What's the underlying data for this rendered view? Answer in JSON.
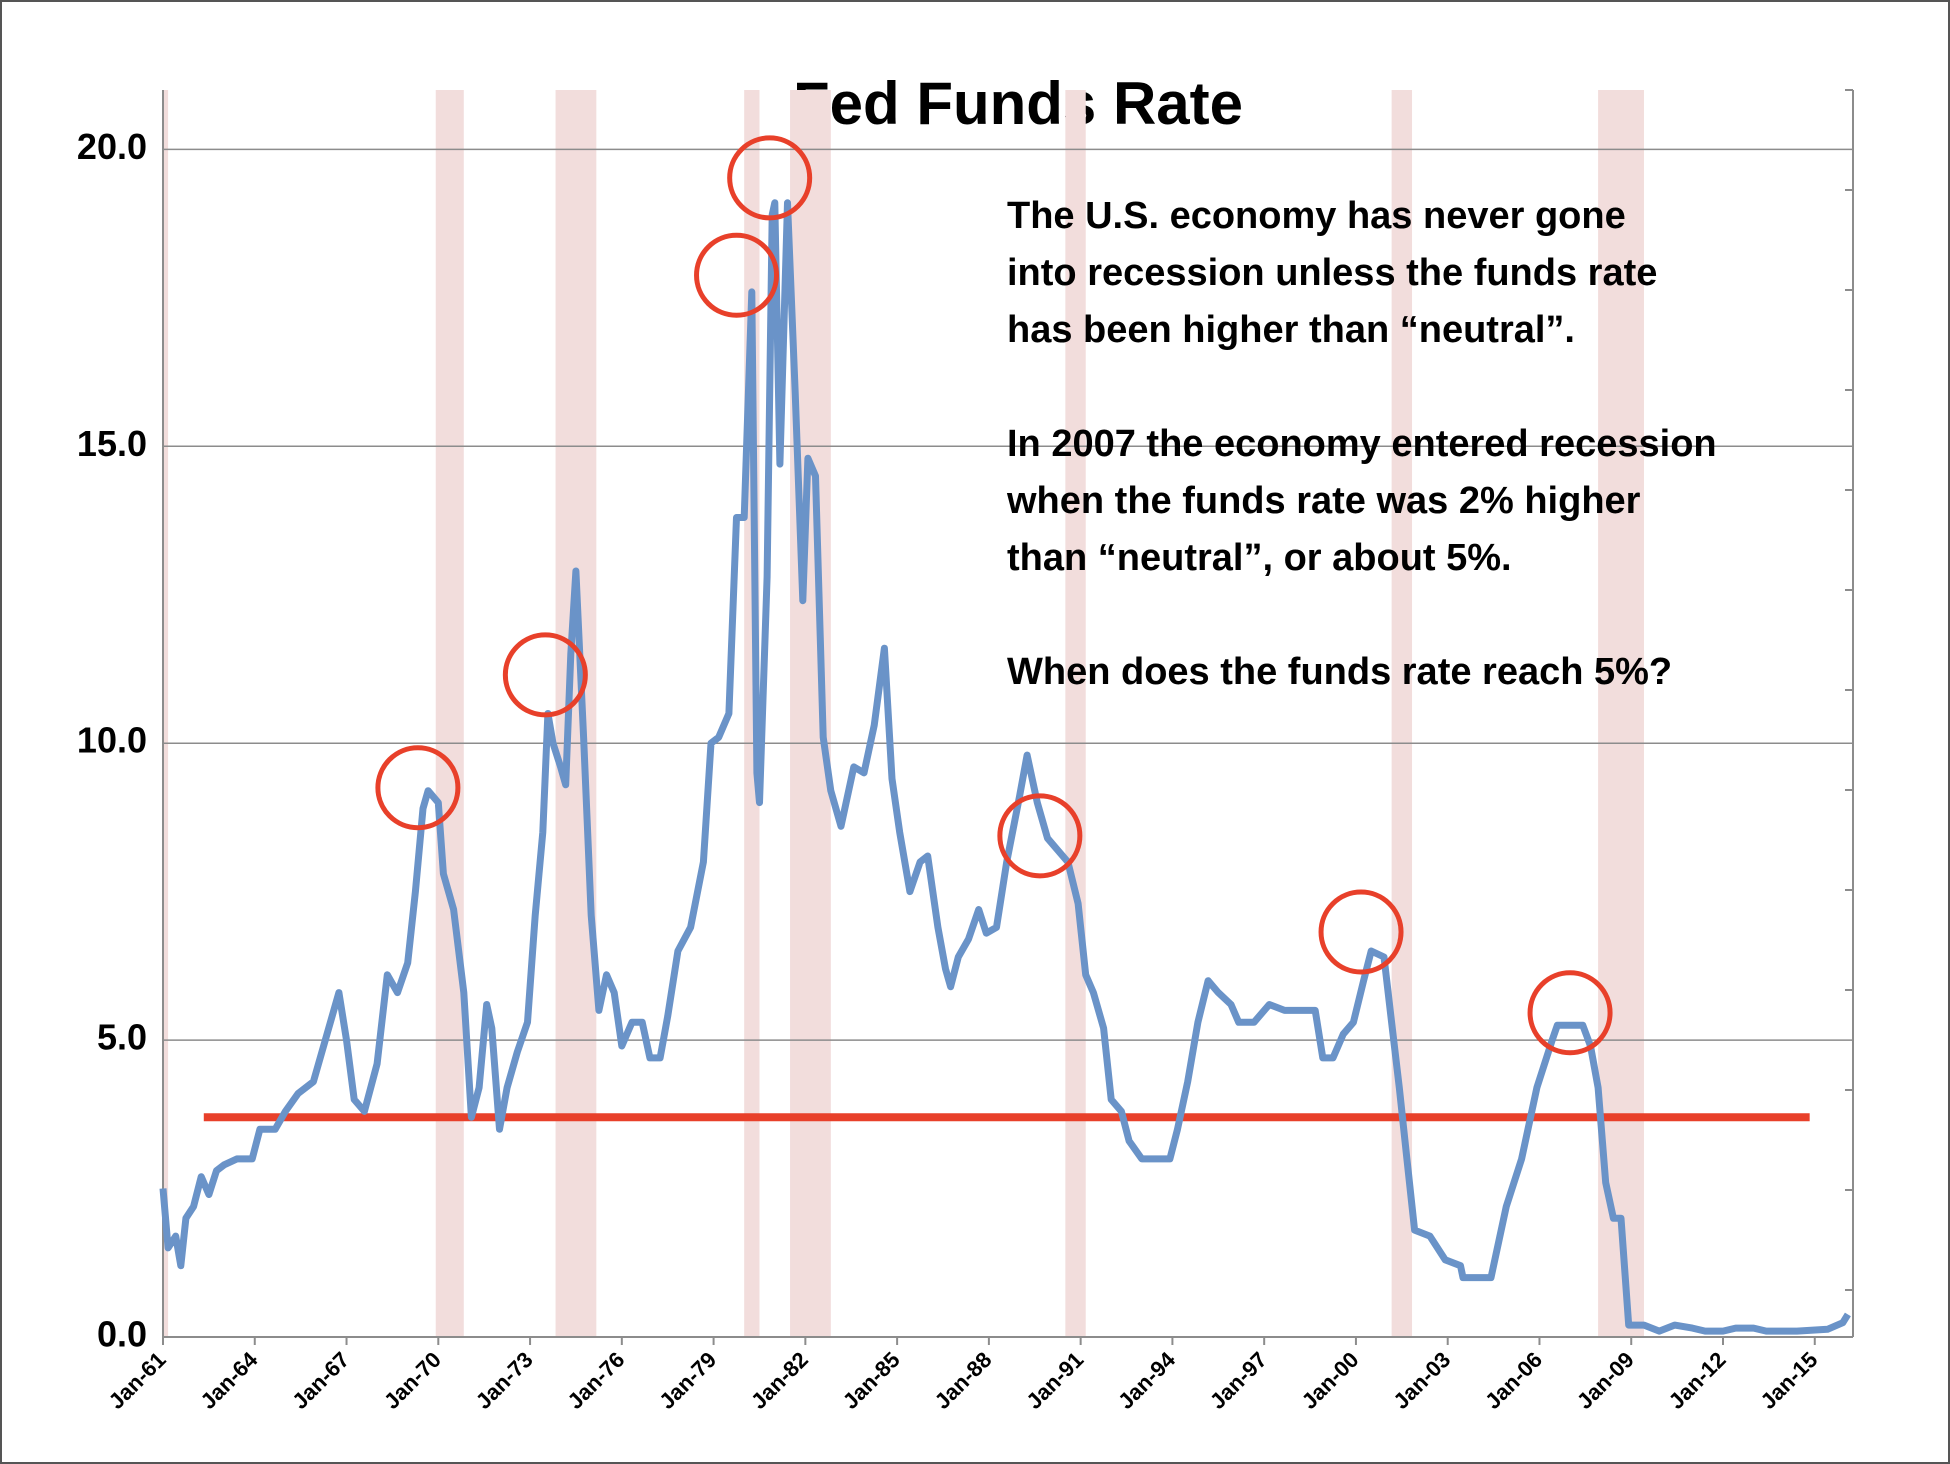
{
  "chart_data": {
    "type": "line",
    "title": "Fed Funds Rate",
    "x": [
      "1961-01",
      "1961-03",
      "1961-06",
      "1961-08",
      "1961-10",
      "1962-01",
      "1962-04",
      "1962-07",
      "1962-10",
      "1963-01",
      "1963-06",
      "1963-12",
      "1964-03",
      "1964-09",
      "1965-01",
      "1965-06",
      "1965-12",
      "1966-06",
      "1966-10",
      "1967-01",
      "1967-04",
      "1967-08",
      "1968-01",
      "1968-05",
      "1968-09",
      "1969-01",
      "1969-04",
      "1969-07",
      "1969-09",
      "1970-01",
      "1970-03",
      "1970-07",
      "1970-11",
      "1971-02",
      "1971-05",
      "1971-08",
      "1971-10",
      "1972-01",
      "1972-04",
      "1972-08",
      "1972-12",
      "1973-03",
      "1973-06",
      "1973-08",
      "1973-10",
      "1974-01",
      "1974-03",
      "1974-05",
      "1974-07",
      "1974-10",
      "1975-01",
      "1975-04",
      "1975-07",
      "1975-10",
      "1976-01",
      "1976-05",
      "1976-09",
      "1976-12",
      "1977-04",
      "1977-07",
      "1977-11",
      "1978-04",
      "1978-09",
      "1978-12",
      "1979-03",
      "1979-07",
      "1979-10",
      "1980-01",
      "1980-04",
      "1980-06",
      "1980-07",
      "1980-10",
      "1980-12",
      "1981-01",
      "1981-03",
      "1981-06",
      "1981-09",
      "1981-12",
      "1982-02",
      "1982-05",
      "1982-08",
      "1982-11",
      "1983-03",
      "1983-08",
      "1983-12",
      "1984-04",
      "1984-08",
      "1984-11",
      "1985-02",
      "1985-06",
      "1985-10",
      "1986-01",
      "1986-05",
      "1986-08",
      "1986-10",
      "1987-01",
      "1987-05",
      "1987-09",
      "1987-12",
      "1988-04",
      "1988-08",
      "1989-01",
      "1989-04",
      "1989-08",
      "1989-12",
      "1990-04",
      "1990-08",
      "1990-12",
      "1991-03",
      "1991-06",
      "1991-10",
      "1992-01",
      "1992-05",
      "1992-08",
      "1993-01",
      "1993-06",
      "1993-12",
      "1994-03",
      "1994-07",
      "1994-11",
      "1995-03",
      "1995-07",
      "1995-12",
      "1996-03",
      "1996-09",
      "1997-03",
      "1997-09",
      "1998-03",
      "1998-09",
      "1998-12",
      "1999-04",
      "1999-08",
      "1999-12",
      "2000-04",
      "2000-07",
      "2000-12",
      "2001-03",
      "2001-06",
      "2001-09",
      "2001-12",
      "2002-06",
      "2002-12",
      "2003-06",
      "2003-07",
      "2004-06",
      "2004-12",
      "2005-06",
      "2005-12",
      "2006-06",
      "2006-08",
      "2007-06",
      "2007-09",
      "2007-12",
      "2008-03",
      "2008-06",
      "2008-09",
      "2008-12",
      "2009-06",
      "2009-12",
      "2010-06",
      "2011-01",
      "2011-06",
      "2012-01",
      "2012-06",
      "2013-01",
      "2013-06",
      "2014-06",
      "2015-06",
      "2015-12",
      "2016-02"
    ],
    "series": [
      {
        "color": "#6a93c8",
        "values": [
          2.5,
          1.5,
          1.7,
          1.2,
          2.0,
          2.2,
          2.7,
          2.4,
          2.8,
          2.9,
          3.0,
          3.0,
          3.5,
          3.5,
          3.8,
          4.1,
          4.3,
          5.2,
          5.8,
          5.0,
          4.0,
          3.8,
          4.6,
          6.1,
          5.8,
          6.3,
          7.5,
          8.9,
          9.2,
          9.0,
          7.8,
          7.2,
          5.8,
          3.7,
          4.2,
          5.6,
          5.2,
          3.5,
          4.2,
          4.8,
          5.3,
          7.1,
          8.5,
          10.5,
          10.0,
          9.6,
          9.3,
          11.5,
          12.9,
          10.1,
          7.1,
          5.5,
          6.1,
          5.8,
          4.9,
          5.3,
          5.3,
          4.7,
          4.7,
          5.4,
          6.5,
          6.9,
          8.0,
          10.0,
          10.1,
          10.5,
          13.8,
          13.8,
          17.6,
          9.5,
          9.0,
          12.8,
          18.9,
          19.1,
          14.7,
          19.1,
          15.9,
          12.4,
          14.8,
          14.5,
          10.1,
          9.2,
          8.6,
          9.6,
          9.5,
          10.3,
          11.6,
          9.4,
          8.5,
          7.5,
          8.0,
          8.1,
          6.9,
          6.2,
          5.9,
          6.4,
          6.7,
          7.2,
          6.8,
          6.9,
          8.0,
          9.1,
          9.8,
          9.0,
          8.4,
          8.2,
          8.0,
          7.3,
          6.1,
          5.8,
          5.2,
          4.0,
          3.8,
          3.3,
          3.0,
          3.0,
          3.0,
          3.5,
          4.3,
          5.3,
          6.0,
          5.8,
          5.6,
          5.3,
          5.3,
          5.6,
          5.5,
          5.5,
          5.5,
          4.7,
          4.7,
          5.1,
          5.3,
          6.0,
          6.5,
          6.4,
          5.3,
          4.2,
          3.0,
          1.8,
          1.7,
          1.3,
          1.2,
          1.0,
          1.0,
          2.2,
          3.0,
          4.2,
          5.0,
          5.25,
          5.25,
          4.9,
          4.2,
          2.6,
          2.0,
          2.0,
          0.2,
          0.2,
          0.1,
          0.2,
          0.15,
          0.1,
          0.1,
          0.15,
          0.15,
          0.1,
          0.1,
          0.13,
          0.24,
          0.38
        ]
      }
    ],
    "xlim": [
      "1961-01",
      "2016-04"
    ],
    "xticks": [
      {
        "value": "1961-01",
        "label": "Jan-61"
      },
      {
        "value": "1964-01",
        "label": "Jan-64"
      },
      {
        "value": "1967-01",
        "label": "Jan-67"
      },
      {
        "value": "1970-01",
        "label": "Jan-70"
      },
      {
        "value": "1973-01",
        "label": "Jan-73"
      },
      {
        "value": "1976-01",
        "label": "Jan-76"
      },
      {
        "value": "1979-01",
        "label": "Jan-79"
      },
      {
        "value": "1982-01",
        "label": "Jan-82"
      },
      {
        "value": "1985-01",
        "label": "Jan-85"
      },
      {
        "value": "1988-01",
        "label": "Jan-88"
      },
      {
        "value": "1991-01",
        "label": "Jan-91"
      },
      {
        "value": "1994-01",
        "label": "Jan-94"
      },
      {
        "value": "1997-01",
        "label": "Jan-97"
      },
      {
        "value": "2000-01",
        "label": "Jan-00"
      },
      {
        "value": "2003-01",
        "label": "Jan-03"
      },
      {
        "value": "2006-01",
        "label": "Jan-06"
      },
      {
        "value": "2009-01",
        "label": "Jan-09"
      },
      {
        "value": "2012-01",
        "label": "Jan-12"
      },
      {
        "value": "2015-01",
        "label": "Jan-15"
      }
    ],
    "ylim": [
      0,
      21
    ],
    "yticks": [
      {
        "value": 0,
        "label": "0.0"
      },
      {
        "value": 5,
        "label": "5.0"
      },
      {
        "value": 10,
        "label": "10.0"
      },
      {
        "value": 15,
        "label": "15.0"
      },
      {
        "value": 20,
        "label": "20.0"
      }
    ],
    "grid": true,
    "recessions": [
      [
        "1961-01",
        "1961-03"
      ],
      [
        "1969-12",
        "1970-11"
      ],
      [
        "1973-11",
        "1975-03"
      ],
      [
        "1980-01",
        "1980-07"
      ],
      [
        "1981-07",
        "1982-11"
      ],
      [
        "1990-07",
        "1991-03"
      ],
      [
        "2001-03",
        "2001-11"
      ],
      [
        "2007-12",
        "2009-06"
      ]
    ],
    "recession_color": "#f2dddc",
    "circles": [
      [
        "1969-05",
        9.25
      ],
      [
        "1973-07",
        11.15
      ],
      [
        "1979-10",
        17.88
      ],
      [
        "1980-11",
        19.52
      ],
      [
        "1989-09",
        8.44
      ],
      [
        "2000-03",
        6.82
      ],
      [
        "2007-01",
        5.46
      ]
    ],
    "circle_color": "#e8402a",
    "neutral_line": {
      "value": 3.7,
      "from": "1962-05",
      "to": "2014-11",
      "color": "#e8402a"
    },
    "annotation": [
      [
        "The U.S. economy has never gone",
        "into recession unless the funds rate",
        "has been higher than “neutral”."
      ],
      [
        "In 2007 the economy entered recession",
        "when the funds rate was 2% higher",
        "than “neutral”, or about 5%."
      ],
      [
        "When does the funds rate reach 5%?"
      ]
    ]
  }
}
